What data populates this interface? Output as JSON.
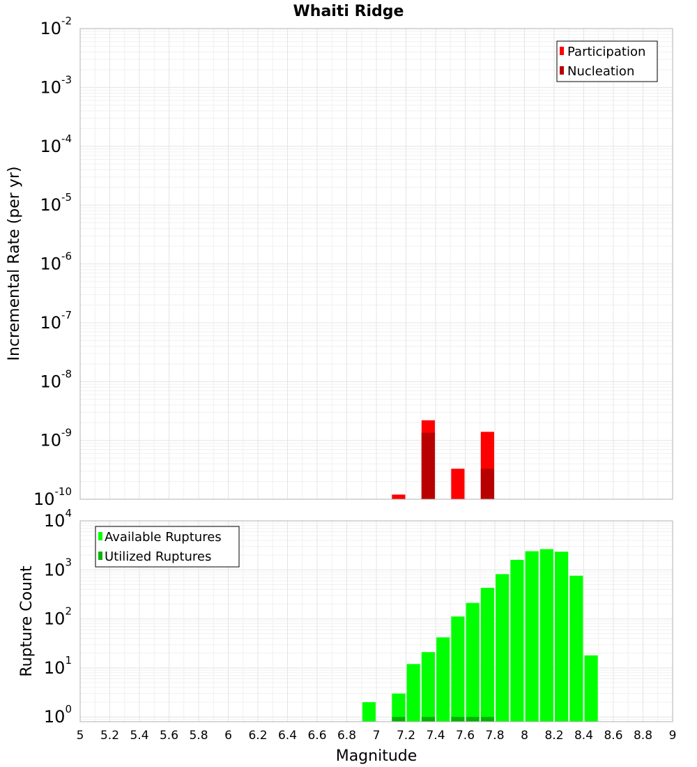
{
  "chart_data": [
    {
      "type": "bar",
      "title": "Whaiti Ridge",
      "xlabel": "",
      "ylabel": "Incremental Rate (per yr)",
      "y_scale": "log",
      "ylim": [
        1e-10,
        0.01
      ],
      "xlim": [
        5,
        9
      ],
      "y_ticks": [
        {
          "base": "10",
          "exp": "-2"
        },
        {
          "base": "10",
          "exp": "-3"
        },
        {
          "base": "10",
          "exp": "-4"
        },
        {
          "base": "10",
          "exp": "-5"
        },
        {
          "base": "10",
          "exp": "-6"
        },
        {
          "base": "10",
          "exp": "-7"
        },
        {
          "base": "10",
          "exp": "-8"
        },
        {
          "base": "10",
          "exp": "-9"
        },
        {
          "base": "10",
          "exp": "-10"
        }
      ],
      "grid": true,
      "legend_position": "top-right",
      "bar_width": 0.09,
      "series": [
        {
          "name": "Participation",
          "color": "#ff0000",
          "x": [
            7.15,
            7.35,
            7.55,
            7.75
          ],
          "values": [
            1.2e-10,
            2.2e-09,
            3.3e-10,
            1.4e-09
          ]
        },
        {
          "name": "Nucleation",
          "color": "#b80000",
          "x": [
            7.35,
            7.75
          ],
          "values": [
            1.35e-09,
            3.3e-10
          ]
        }
      ]
    },
    {
      "type": "bar",
      "title": "",
      "xlabel": "Magnitude",
      "ylabel": "Rupture Count",
      "y_scale": "log",
      "ylim": [
        0.8,
        10000
      ],
      "xlim": [
        5,
        9
      ],
      "x_ticks": [
        "5",
        "5.2",
        "5.4",
        "5.6",
        "5.8",
        "6",
        "6.2",
        "6.4",
        "6.6",
        "6.8",
        "7",
        "7.2",
        "7.4",
        "7.6",
        "7.8",
        "8",
        "8.2",
        "8.4",
        "8.6",
        "8.8",
        "9"
      ],
      "y_ticks": [
        {
          "base": "10",
          "exp": "4"
        },
        {
          "base": "10",
          "exp": "3"
        },
        {
          "base": "10",
          "exp": "2"
        },
        {
          "base": "10",
          "exp": "1"
        },
        {
          "base": "10",
          "exp": "0"
        }
      ],
      "grid": true,
      "legend_position": "top-left",
      "bar_width": 0.09,
      "series": [
        {
          "name": "Available Ruptures",
          "color": "#00ff00",
          "x": [
            6.95,
            7.15,
            7.25,
            7.35,
            7.45,
            7.55,
            7.65,
            7.75,
            7.85,
            7.95,
            8.05,
            8.15,
            8.25,
            8.35,
            8.45
          ],
          "values": [
            2,
            3,
            12,
            21,
            42,
            112,
            212,
            430,
            820,
            1600,
            2400,
            2650,
            2350,
            760,
            18
          ]
        },
        {
          "name": "Utilized Ruptures",
          "color": "#00b400",
          "x": [
            7.15,
            7.35,
            7.55,
            7.65,
            7.75
          ],
          "values": [
            1,
            1,
            1,
            1,
            1
          ]
        }
      ]
    }
  ]
}
